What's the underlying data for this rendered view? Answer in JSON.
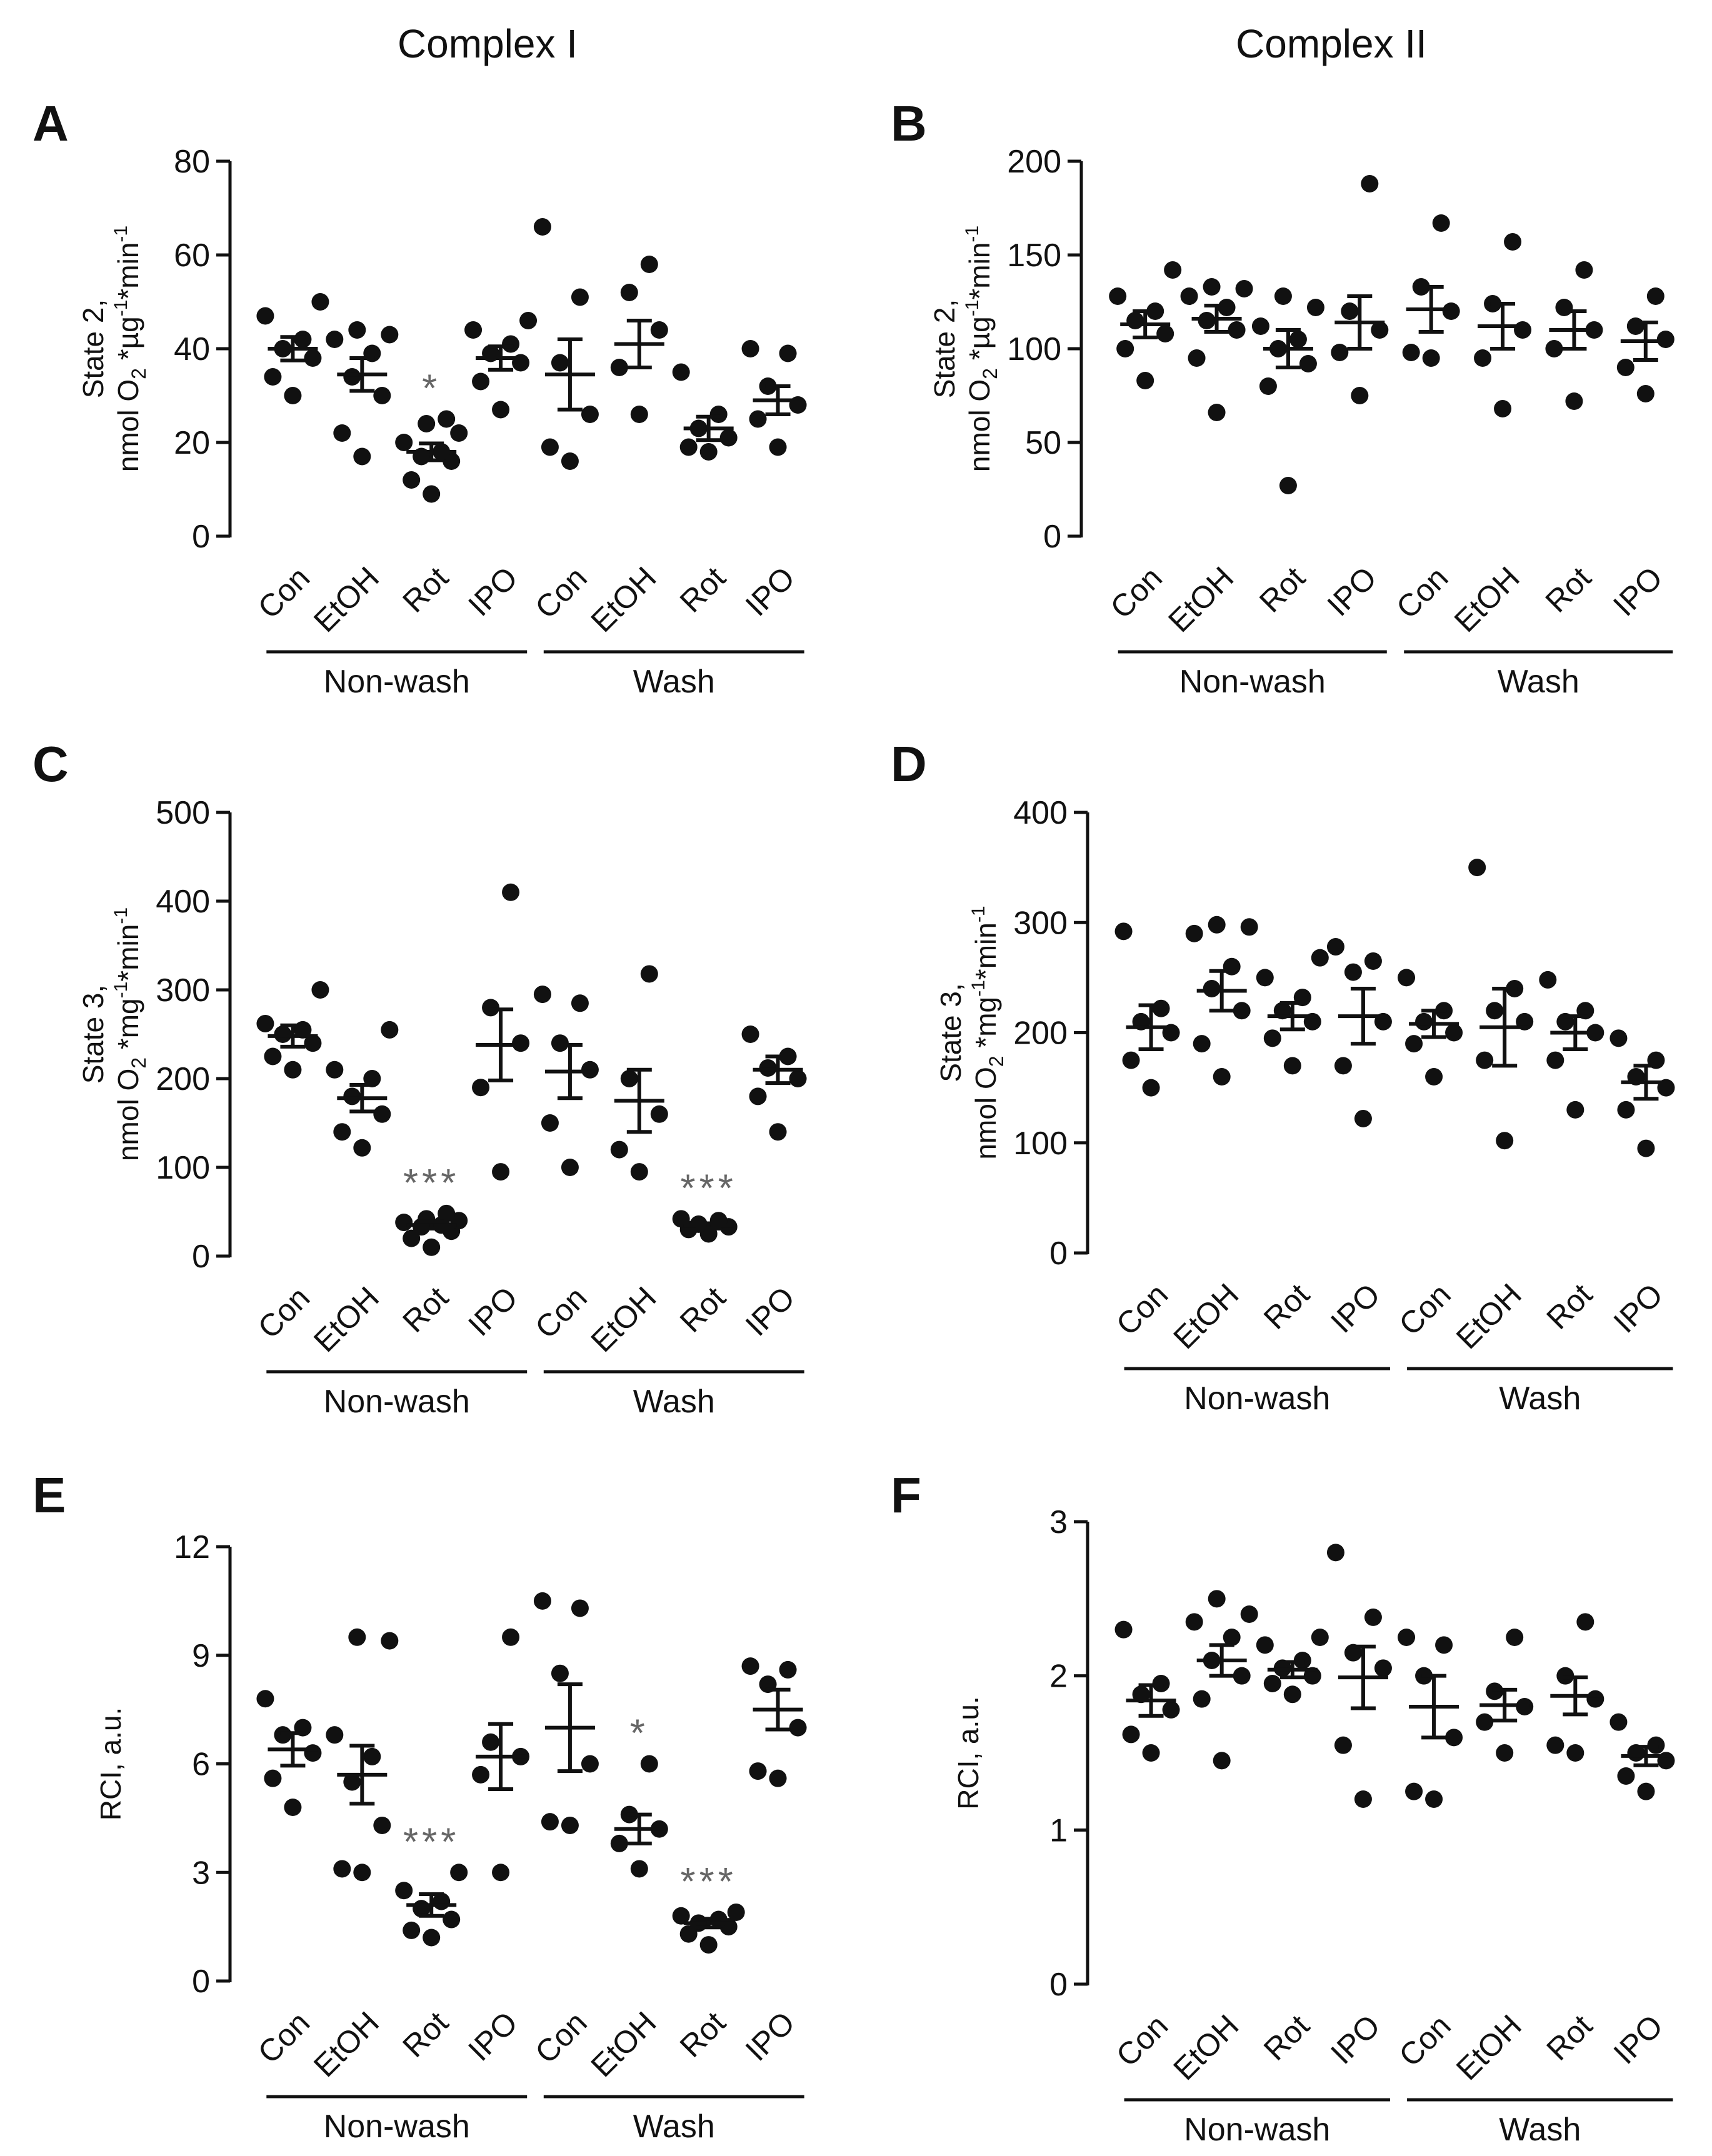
{
  "column_titles": [
    "Complex I",
    "Complex II"
  ],
  "chart_data": [
    {
      "panel": "A",
      "type": "scatter",
      "ylabel_lines": [
        "State 2,",
        "nmol O2 *µg-1*min-1"
      ],
      "ylim": [
        0,
        80
      ],
      "yticks": [
        0,
        20,
        40,
        60,
        80
      ],
      "categories": [
        "Con",
        "EtOH",
        "Rot",
        "IPO",
        "Con",
        "EtOH",
        "Rot",
        "IPO"
      ],
      "groups": [
        {
          "label": "Non-wash",
          "span": [
            0,
            3
          ]
        },
        {
          "label": "Wash",
          "span": [
            4,
            7
          ]
        }
      ],
      "series": [
        {
          "category": "Con",
          "points": [
            30,
            34,
            38,
            40,
            42,
            47,
            50
          ],
          "mean": 40,
          "sem": 2.5
        },
        {
          "category": "EtOH",
          "points": [
            17,
            22,
            30,
            34,
            39,
            42,
            43,
            44
          ],
          "mean": 34.5,
          "sem": 3.5
        },
        {
          "category": "Rot",
          "points": [
            9,
            12,
            16,
            17,
            18,
            20,
            22,
            24,
            25
          ],
          "mean": 18,
          "sem": 1.8,
          "sig": "*"
        },
        {
          "category": "IPO",
          "points": [
            27,
            33,
            37,
            39,
            41,
            44,
            46
          ],
          "mean": 38,
          "sem": 2.5
        },
        {
          "category": "Con",
          "points": [
            16,
            19,
            26,
            37,
            51,
            66
          ],
          "mean": 34.5,
          "sem": 7.5
        },
        {
          "category": "EtOH",
          "points": [
            26,
            36,
            44,
            52,
            58
          ],
          "mean": 41,
          "sem": 5
        },
        {
          "category": "Rot",
          "points": [
            18,
            19,
            21,
            23,
            26,
            35
          ],
          "mean": 23,
          "sem": 2.5
        },
        {
          "category": "IPO",
          "points": [
            19,
            25,
            28,
            32,
            39,
            40
          ],
          "mean": 29,
          "sem": 3
        }
      ]
    },
    {
      "panel": "B",
      "type": "scatter",
      "ylabel_lines": [
        "State 2,",
        "nmol O2 *µg-1*min-1"
      ],
      "ylim": [
        0,
        200
      ],
      "yticks": [
        0,
        50,
        100,
        150,
        200
      ],
      "categories": [
        "Con",
        "EtOH",
        "Rot",
        "IPO",
        "Con",
        "EtOH",
        "Rot",
        "IPO"
      ],
      "groups": [
        {
          "label": "Non-wash",
          "span": [
            0,
            3
          ]
        },
        {
          "label": "Wash",
          "span": [
            4,
            7
          ]
        }
      ],
      "series": [
        {
          "category": "Con",
          "points": [
            83,
            100,
            108,
            115,
            120,
            128,
            142
          ],
          "mean": 113,
          "sem": 7
        },
        {
          "category": "EtOH",
          "points": [
            66,
            95,
            110,
            115,
            122,
            128,
            132,
            133
          ],
          "mean": 116,
          "sem": 7
        },
        {
          "category": "Rot",
          "points": [
            27,
            80,
            92,
            100,
            105,
            112,
            122,
            128
          ],
          "mean": 100,
          "sem": 10
        },
        {
          "category": "IPO",
          "points": [
            75,
            98,
            110,
            120,
            188
          ],
          "mean": 114,
          "sem": 14
        },
        {
          "category": "Con",
          "points": [
            95,
            98,
            120,
            133,
            167
          ],
          "mean": 121,
          "sem": 12
        },
        {
          "category": "EtOH",
          "points": [
            68,
            95,
            110,
            124,
            157
          ],
          "mean": 112,
          "sem": 12
        },
        {
          "category": "Rot",
          "points": [
            72,
            100,
            110,
            122,
            142
          ],
          "mean": 110,
          "sem": 10
        },
        {
          "category": "IPO",
          "points": [
            76,
            90,
            105,
            112,
            128
          ],
          "mean": 104,
          "sem": 10
        }
      ]
    },
    {
      "panel": "C",
      "type": "scatter",
      "ylabel_lines": [
        "State 3,",
        "nmol O2 *mg-1*min-1"
      ],
      "ylim": [
        0,
        500
      ],
      "yticks": [
        0,
        100,
        200,
        300,
        400,
        500
      ],
      "categories": [
        "Con",
        "EtOH",
        "Rot",
        "IPO",
        "Con",
        "EtOH",
        "Rot",
        "IPO"
      ],
      "groups": [
        {
          "label": "Non-wash",
          "span": [
            0,
            3
          ]
        },
        {
          "label": "Wash",
          "span": [
            4,
            7
          ]
        }
      ],
      "series": [
        {
          "category": "Con",
          "points": [
            210,
            225,
            240,
            250,
            255,
            262,
            300
          ],
          "mean": 248,
          "sem": 12
        },
        {
          "category": "EtOH",
          "points": [
            122,
            140,
            160,
            180,
            200,
            210,
            255
          ],
          "mean": 178,
          "sem": 15
        },
        {
          "category": "Rot",
          "points": [
            10,
            20,
            28,
            33,
            35,
            38,
            40,
            42,
            48
          ],
          "mean": 35,
          "sem": 4,
          "sig": "***"
        },
        {
          "category": "IPO",
          "points": [
            95,
            190,
            240,
            280,
            410
          ],
          "mean": 238,
          "sem": 40
        },
        {
          "category": "Con",
          "points": [
            100,
            150,
            210,
            240,
            285,
            295
          ],
          "mean": 208,
          "sem": 30
        },
        {
          "category": "EtOH",
          "points": [
            95,
            120,
            160,
            200,
            318
          ],
          "mean": 175,
          "sem": 35
        },
        {
          "category": "Rot",
          "points": [
            25,
            30,
            33,
            36,
            40,
            42
          ],
          "mean": 34,
          "sem": 3,
          "sig": "***"
        },
        {
          "category": "IPO",
          "points": [
            140,
            180,
            200,
            212,
            225,
            250
          ],
          "mean": 210,
          "sem": 15
        }
      ]
    },
    {
      "panel": "D",
      "type": "scatter",
      "ylabel_lines": [
        "State 3,",
        "nmol O2 *mg-1*min-1"
      ],
      "ylim": [
        0,
        400
      ],
      "yticks": [
        0,
        100,
        200,
        300,
        400
      ],
      "categories": [
        "Con",
        "EtOH",
        "Rot",
        "IPO",
        "Con",
        "EtOH",
        "Rot",
        "IPO"
      ],
      "groups": [
        {
          "label": "Non-wash",
          "span": [
            0,
            3
          ]
        },
        {
          "label": "Wash",
          "span": [
            4,
            7
          ]
        }
      ],
      "series": [
        {
          "category": "Con",
          "points": [
            150,
            175,
            200,
            210,
            222,
            292
          ],
          "mean": 205,
          "sem": 20
        },
        {
          "category": "EtOH",
          "points": [
            160,
            190,
            220,
            240,
            260,
            290,
            296,
            298
          ],
          "mean": 238,
          "sem": 18
        },
        {
          "category": "Rot",
          "points": [
            170,
            195,
            210,
            220,
            232,
            250,
            268
          ],
          "mean": 215,
          "sem": 12
        },
        {
          "category": "IPO",
          "points": [
            122,
            170,
            210,
            255,
            265,
            278
          ],
          "mean": 215,
          "sem": 25
        },
        {
          "category": "Con",
          "points": [
            160,
            190,
            200,
            210,
            220,
            250
          ],
          "mean": 208,
          "sem": 12
        },
        {
          "category": "EtOH",
          "points": [
            102,
            175,
            210,
            220,
            240,
            350
          ],
          "mean": 205,
          "sem": 35
        },
        {
          "category": "Rot",
          "points": [
            130,
            175,
            200,
            210,
            220,
            248
          ],
          "mean": 200,
          "sem": 15
        },
        {
          "category": "IPO",
          "points": [
            95,
            130,
            150,
            160,
            175,
            195
          ],
          "mean": 155,
          "sem": 15
        }
      ]
    },
    {
      "panel": "E",
      "type": "scatter",
      "ylabel_lines": [
        "RCI, a.u."
      ],
      "ylim": [
        0,
        12
      ],
      "yticks": [
        0,
        3,
        6,
        9,
        12
      ],
      "categories": [
        "Con",
        "EtOH",
        "Rot",
        "IPO",
        "Con",
        "EtOH",
        "Rot",
        "IPO"
      ],
      "groups": [
        {
          "label": "Non-wash",
          "span": [
            0,
            3
          ]
        },
        {
          "label": "Wash",
          "span": [
            4,
            7
          ]
        }
      ],
      "series": [
        {
          "category": "Con",
          "points": [
            4.8,
            5.6,
            6.3,
            6.8,
            7.0,
            7.8
          ],
          "mean": 6.4,
          "sem": 0.45
        },
        {
          "category": "EtOH",
          "points": [
            3.0,
            3.1,
            4.3,
            5.5,
            6.2,
            6.8,
            9.4,
            9.5
          ],
          "mean": 5.7,
          "sem": 0.8
        },
        {
          "category": "Rot",
          "points": [
            1.2,
            1.4,
            1.7,
            2.0,
            2.2,
            2.5,
            3.0
          ],
          "mean": 2.1,
          "sem": 0.3,
          "sig": "***"
        },
        {
          "category": "IPO",
          "points": [
            3.0,
            5.7,
            6.2,
            6.6,
            9.5
          ],
          "mean": 6.2,
          "sem": 0.9
        },
        {
          "category": "Con",
          "points": [
            4.3,
            4.4,
            6.0,
            8.5,
            10.3,
            10.5
          ],
          "mean": 7.0,
          "sem": 1.2
        },
        {
          "category": "EtOH",
          "points": [
            3.1,
            3.8,
            4.2,
            4.6,
            6.0
          ],
          "mean": 4.2,
          "sem": 0.4,
          "sig": "*"
        },
        {
          "category": "Rot",
          "points": [
            1.0,
            1.3,
            1.5,
            1.6,
            1.7,
            1.8,
            1.9
          ],
          "mean": 1.6,
          "sem": 0.12,
          "sig": "***"
        },
        {
          "category": "IPO",
          "points": [
            5.6,
            5.8,
            7.0,
            8.2,
            8.6,
            8.7
          ],
          "mean": 7.5,
          "sem": 0.55
        }
      ]
    },
    {
      "panel": "F",
      "type": "scatter",
      "ylabel_lines": [
        "RCI, a.u."
      ],
      "ylim": [
        0,
        3
      ],
      "yticks": [
        0,
        1,
        2,
        3
      ],
      "categories": [
        "Con",
        "EtOH",
        "Rot",
        "IPO",
        "Con",
        "EtOH",
        "Rot",
        "IPO"
      ],
      "groups": [
        {
          "label": "Non-wash",
          "span": [
            0,
            3
          ]
        },
        {
          "label": "Wash",
          "span": [
            4,
            7
          ]
        }
      ],
      "series": [
        {
          "category": "Con",
          "points": [
            1.5,
            1.62,
            1.78,
            1.88,
            1.95,
            2.3
          ],
          "mean": 1.84,
          "sem": 0.1
        },
        {
          "category": "EtOH",
          "points": [
            1.45,
            1.85,
            2.0,
            2.1,
            2.25,
            2.35,
            2.4,
            2.5
          ],
          "mean": 2.1,
          "sem": 0.1
        },
        {
          "category": "Rot",
          "points": [
            1.88,
            1.95,
            2.0,
            2.05,
            2.1,
            2.2,
            2.25
          ],
          "mean": 2.04,
          "sem": 0.05
        },
        {
          "category": "IPO",
          "points": [
            1.2,
            1.55,
            2.05,
            2.15,
            2.38,
            2.8
          ],
          "mean": 1.99,
          "sem": 0.2
        },
        {
          "category": "Con",
          "points": [
            1.2,
            1.25,
            1.6,
            2.0,
            2.2,
            2.25
          ],
          "mean": 1.8,
          "sem": 0.2
        },
        {
          "category": "EtOH",
          "points": [
            1.5,
            1.7,
            1.8,
            1.9,
            2.25
          ],
          "mean": 1.81,
          "sem": 0.1
        },
        {
          "category": "Rot",
          "points": [
            1.5,
            1.55,
            1.85,
            2.0,
            2.35
          ],
          "mean": 1.87,
          "sem": 0.12
        },
        {
          "category": "IPO",
          "points": [
            1.25,
            1.35,
            1.45,
            1.5,
            1.55,
            1.7
          ],
          "mean": 1.48,
          "sem": 0.06
        }
      ]
    }
  ]
}
